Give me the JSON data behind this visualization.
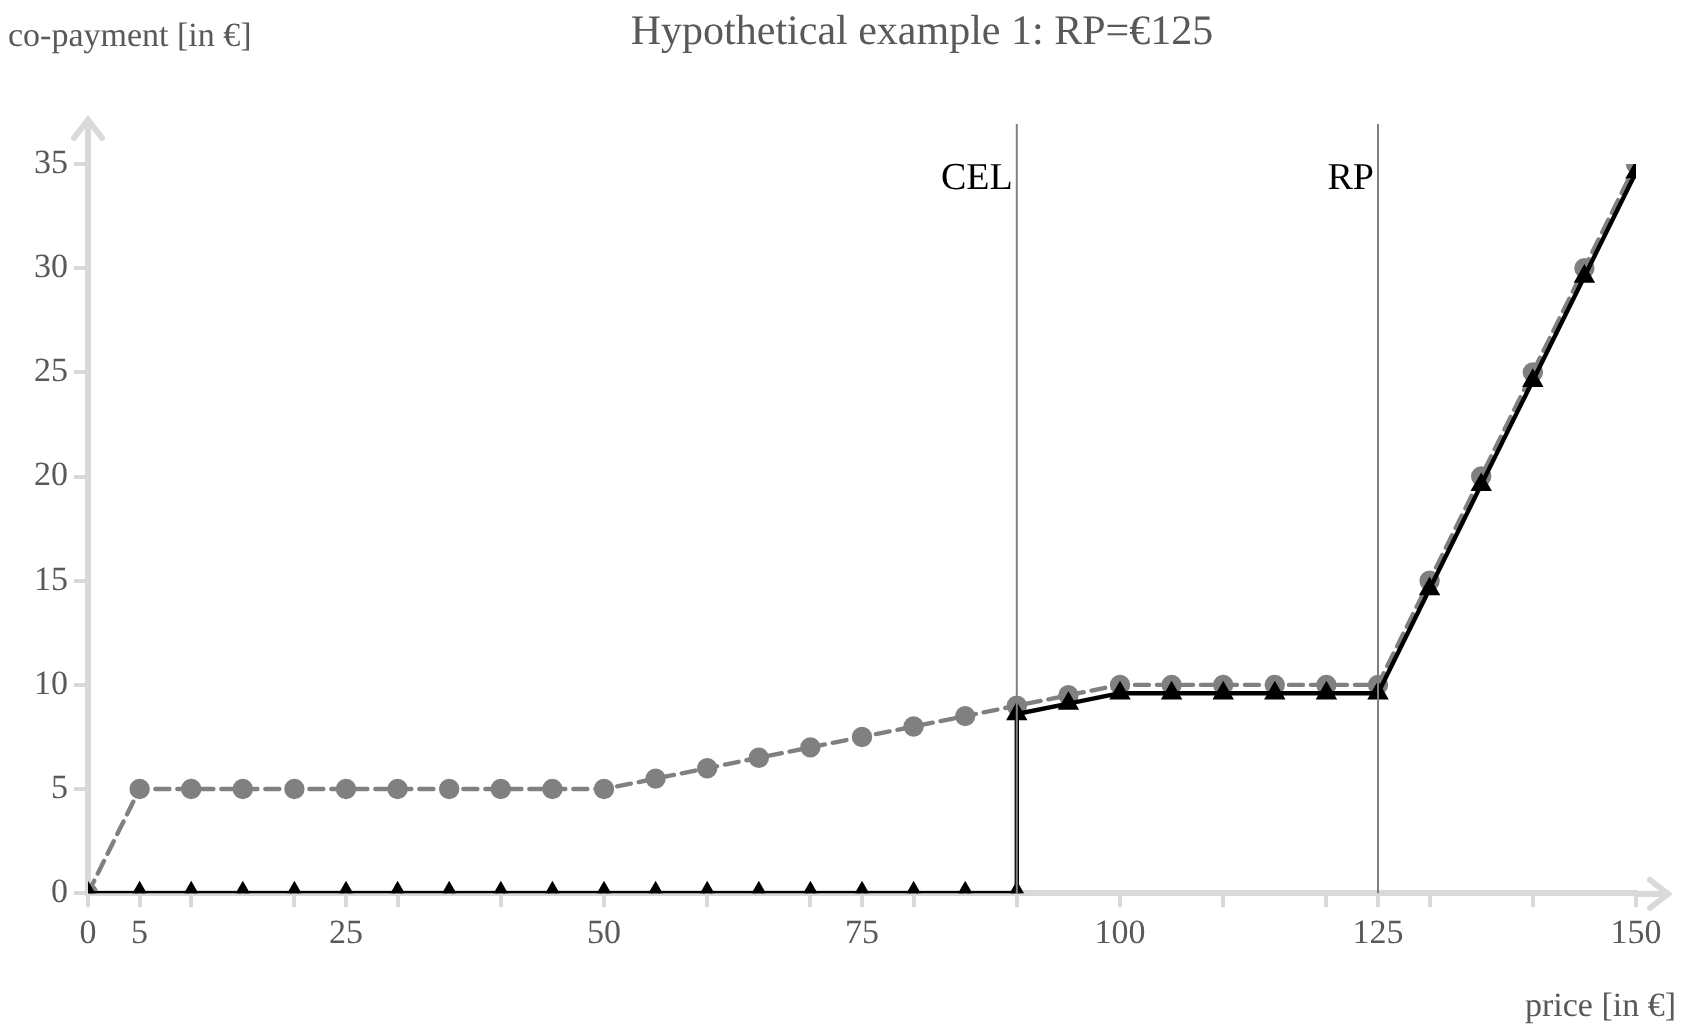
{
  "chart_data": {
    "type": "line",
    "title": "Hypothetical example 1: RP=€125",
    "xlabel": "price [in €]",
    "ylabel": "co-payment [in €]",
    "xlim": [
      0,
      150
    ],
    "xticks": [
      0,
      5,
      {
        "value": 10,
        "label": null
      },
      {
        "value": 20,
        "label": null
      },
      25,
      {
        "value": 30,
        "label": null
      },
      {
        "value": 40,
        "label": null
      },
      50,
      {
        "value": 60,
        "label": null
      },
      {
        "value": 70,
        "label": null
      },
      75,
      {
        "value": 80,
        "label": null
      },
      {
        "value": 90,
        "label": null
      },
      100,
      {
        "value": 110,
        "label": null
      },
      {
        "value": 120,
        "label": null
      },
      125,
      {
        "value": 130,
        "label": null
      },
      {
        "value": 140,
        "label": null
      },
      150
    ],
    "ylim": [
      0,
      35
    ],
    "yticks": [
      0,
      5,
      10,
      15,
      20,
      25,
      30,
      35
    ],
    "grid": false,
    "legend": false,
    "ref_lines": [
      {
        "axis": "x",
        "value": 90,
        "label": "CEL",
        "color": "#808080"
      },
      {
        "axis": "x",
        "value": 125,
        "label": "RP",
        "color": "#808080"
      }
    ],
    "series": [
      {
        "color": "#808080",
        "marker": "circle",
        "line_style": "dashed",
        "x": [
          0,
          5,
          10,
          15,
          20,
          25,
          30,
          35,
          40,
          45,
          50,
          55,
          60,
          65,
          70,
          75,
          80,
          85,
          90,
          95,
          100,
          105,
          110,
          115,
          120,
          125,
          130,
          135,
          140,
          145,
          150
        ],
        "values": [
          0,
          5,
          5,
          5,
          5,
          5,
          5,
          5,
          5,
          5,
          5,
          5.5,
          6,
          6.5,
          7,
          7.5,
          8,
          8.5,
          9,
          9.5,
          10,
          10,
          10,
          10,
          10,
          10,
          15,
          20,
          25,
          30,
          35
        ]
      },
      {
        "color": "#000000",
        "marker": "triangle",
        "line_style": "solid",
        "x": [
          0,
          5,
          10,
          15,
          20,
          25,
          30,
          35,
          40,
          45,
          50,
          55,
          60,
          65,
          70,
          75,
          80,
          85,
          90,
          90,
          95,
          100,
          105,
          110,
          115,
          120,
          125,
          130,
          135,
          140,
          145,
          150
        ],
        "values": [
          0,
          0,
          0,
          0,
          0,
          0,
          0,
          0,
          0,
          0,
          0,
          0,
          0,
          0,
          0,
          0,
          0,
          0,
          0,
          8.6,
          9.1,
          9.6,
          9.6,
          9.6,
          9.6,
          9.6,
          9.6,
          14.6,
          19.6,
          24.6,
          29.6,
          34.6
        ]
      }
    ]
  }
}
